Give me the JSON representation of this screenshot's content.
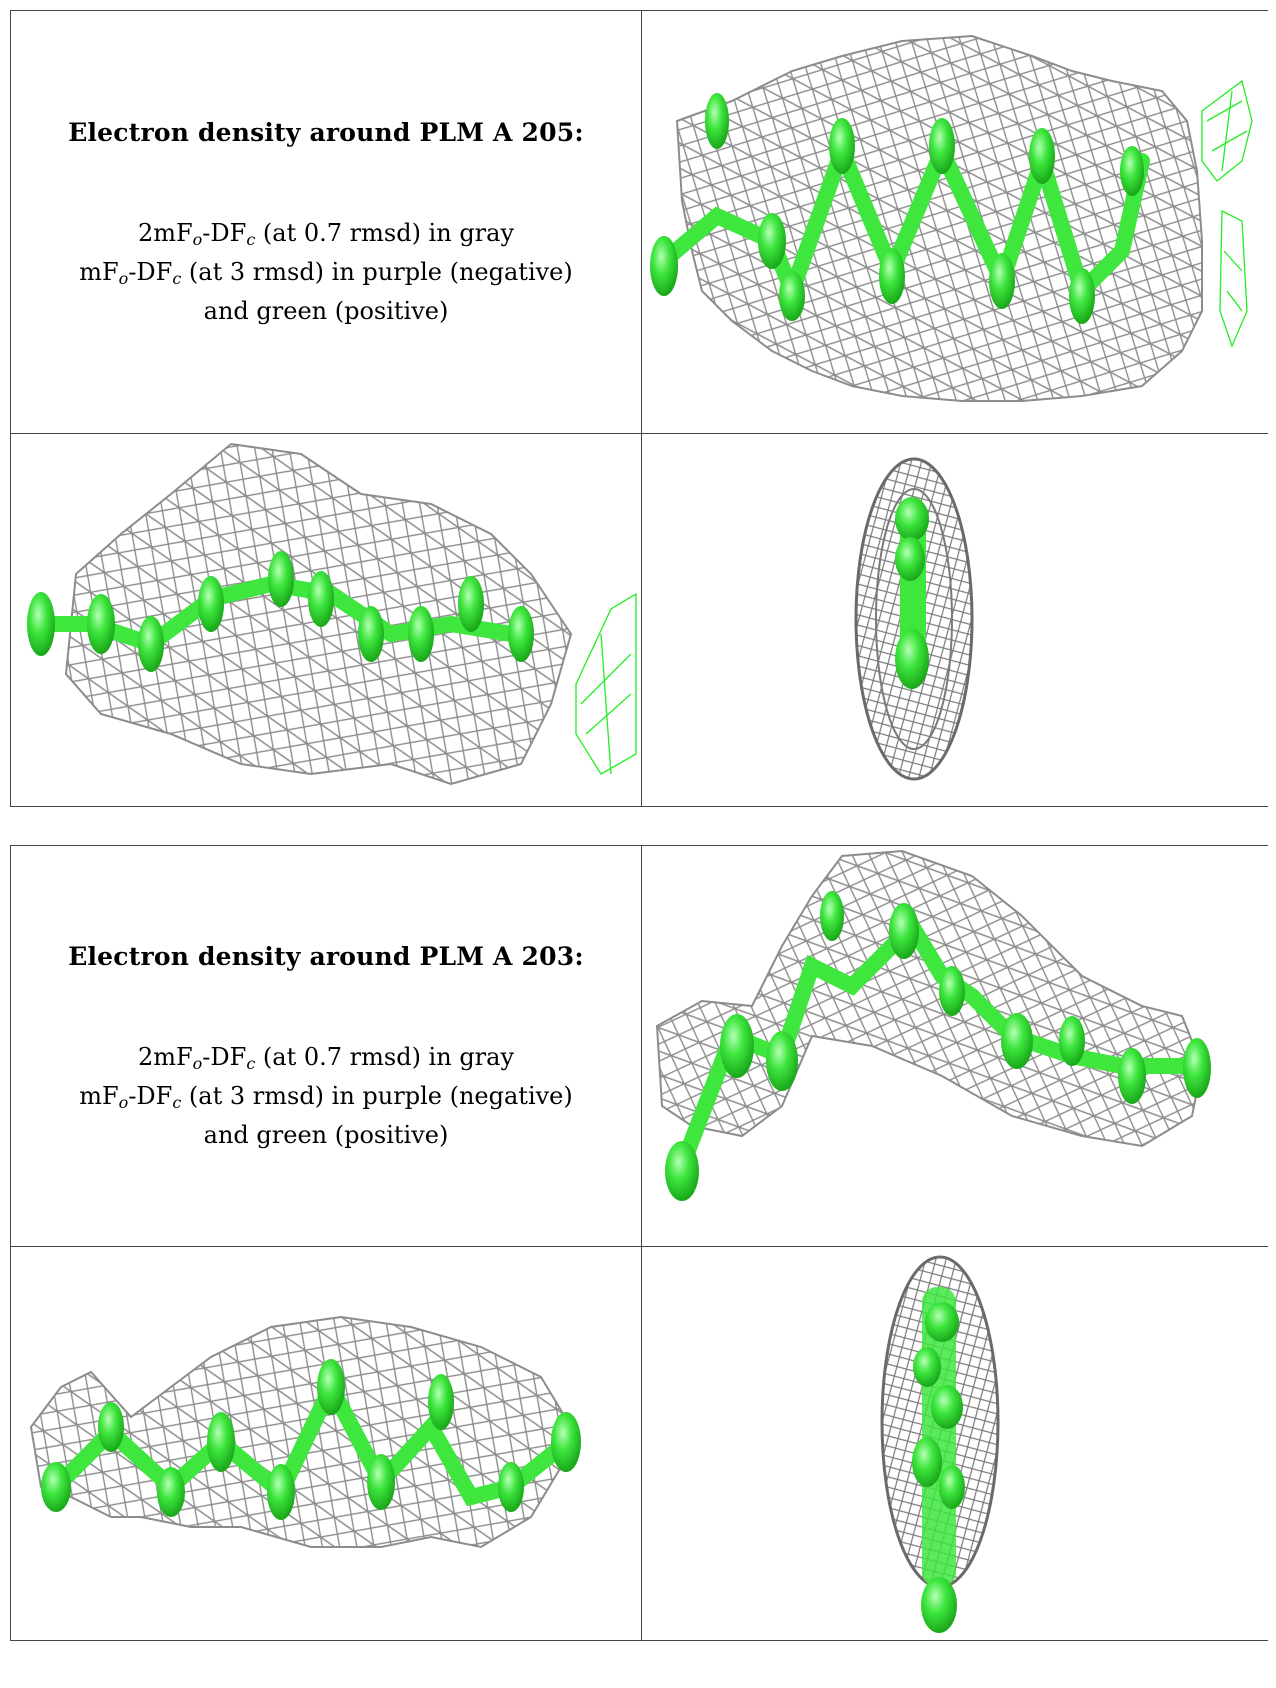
{
  "colors": {
    "mesh": "#8c8c8c",
    "ligand": "#3ee63e",
    "positive_density": "#22ee22",
    "border": "#444444"
  },
  "tables": [
    {
      "title": "Electron density around PLM A 205:",
      "line1_pre": "2mF",
      "line1_sub1": "o",
      "line1_mid": "-DF",
      "line1_sub2": "c",
      "line1_post": " (at 0.7 rmsd) in gray",
      "line2_pre": "mF",
      "line2_sub1": "o",
      "line2_mid": "-DF",
      "line2_sub2": "c",
      "line2_post": " (at 3 rmsd) in purple (negative)",
      "line3": "and green (positive)"
    },
    {
      "title": "Electron density around PLM A 203:",
      "line1_pre": "2mF",
      "line1_sub1": "o",
      "line1_mid": "-DF",
      "line1_sub2": "c",
      "line1_post": " (at 0.7 rmsd) in gray",
      "line2_pre": "mF",
      "line2_sub1": "o",
      "line2_mid": "-DF",
      "line2_sub2": "c",
      "line2_post": " (at 3 rmsd) in purple (negative)",
      "line3": "and green (positive)"
    }
  ]
}
